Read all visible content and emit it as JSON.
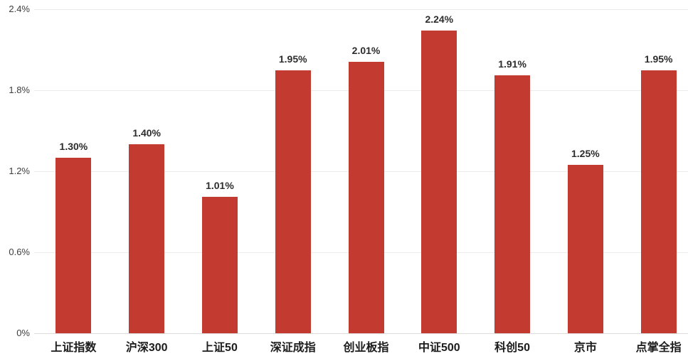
{
  "chart_data": {
    "type": "bar",
    "title": "",
    "xlabel": "",
    "ylabel": "",
    "categories": [
      "上证指数",
      "沪深300",
      "上证50",
      "深证成指",
      "创业板指",
      "中证500",
      "科创50",
      "京市",
      "点掌全指"
    ],
    "values": [
      1.3,
      1.4,
      1.01,
      1.95,
      2.01,
      2.24,
      1.91,
      1.25,
      1.95
    ],
    "value_labels": [
      "1.30%",
      "1.40%",
      "1.01%",
      "1.95%",
      "2.01%",
      "2.24%",
      "1.91%",
      "1.25%",
      "1.95%"
    ],
    "ylim": [
      0,
      2.4
    ],
    "ytick_values": [
      0,
      0.6,
      1.2,
      1.8,
      2.4
    ],
    "ytick_labels": [
      "0%",
      "0.6%",
      "1.2%",
      "1.8%",
      "2.4%"
    ],
    "grid": true,
    "legend": false,
    "bar_color": "#c23a30",
    "gridline_color": "#ececec",
    "baseline_color": "#dcdcdc",
    "value_label_color": "#2d2d2d",
    "category_label_color": "#1c1c1c",
    "ytick_label_color": "#3d3d3d"
  }
}
